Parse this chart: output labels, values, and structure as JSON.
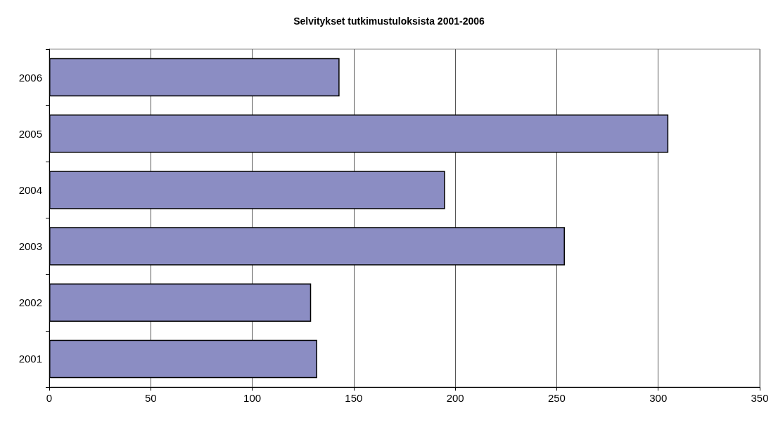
{
  "chart_data": {
    "type": "bar",
    "orientation": "horizontal",
    "title": "Selvitykset tutkimustuloksista 2001-2006",
    "categories": [
      "2006",
      "2005",
      "2004",
      "2003",
      "2002",
      "2001"
    ],
    "values": [
      143,
      305,
      195,
      254,
      129,
      132
    ],
    "color": "#8b8dc3",
    "xlim": [
      0,
      350
    ],
    "xticks": [
      0,
      50,
      100,
      150,
      200,
      250,
      300,
      350
    ],
    "grid": "x"
  }
}
